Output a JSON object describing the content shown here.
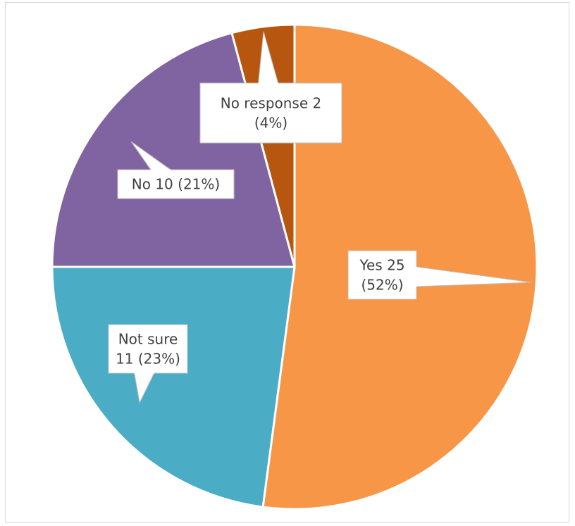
{
  "chart_data": {
    "type": "pie",
    "title": "",
    "slices": [
      {
        "label": "Yes",
        "value": 25,
        "percent": "52%",
        "color": "#f79646",
        "lines": [
          "Yes  25",
          "(52%)"
        ]
      },
      {
        "label": "Not sure",
        "value": 11,
        "percent": "23%",
        "color": "#4bacc6",
        "lines": [
          "Not sure",
          "11 (23%)"
        ]
      },
      {
        "label": "No",
        "value": 10,
        "percent": "21%",
        "color": "#8064a2",
        "lines": [
          "No  10 (21%)"
        ]
      },
      {
        "label": "No response",
        "value": 2,
        "percent": "4%",
        "color": "#b7560e",
        "lines": [
          "No response 2",
          "(4%)"
        ]
      }
    ],
    "start": "12 o'clock",
    "direction": "clockwise",
    "legend": "none",
    "data_labels": "callouts"
  }
}
